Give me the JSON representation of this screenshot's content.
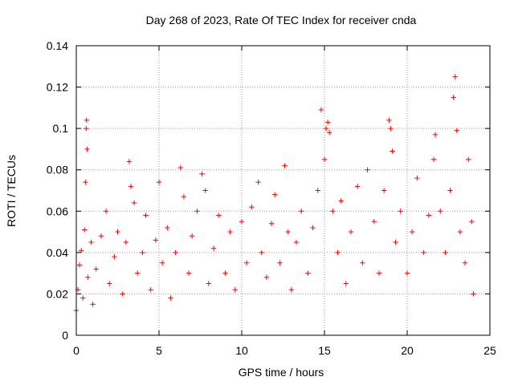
{
  "chart_data": {
    "type": "scatter",
    "title": "Day 268 of 2023, Rate Of TEC Index for receiver cnda",
    "xlabel": "GPS time / hours",
    "ylabel": "ROTI / TECUs",
    "xlim": [
      0,
      25
    ],
    "ylim": [
      0,
      0.14
    ],
    "xticks": [
      0,
      5,
      10,
      15,
      20,
      25
    ],
    "xtick_labels": [
      "0",
      "5",
      "10",
      "15",
      "20",
      "25"
    ],
    "yticks": [
      0,
      0.02,
      0.04,
      0.06,
      0.08,
      0.1,
      0.12,
      0.14
    ],
    "ytick_labels": [
      "0",
      "0.02",
      "0.04",
      "0.06",
      "0.08",
      "0.1",
      "0.12",
      "0.14"
    ],
    "grid": true,
    "marker": "plus",
    "color": "#ff0000",
    "series": [
      {
        "points": [
          [
            0.0,
            0.012
          ],
          [
            0.1,
            0.022
          ],
          [
            0.2,
            0.034
          ],
          [
            0.3,
            0.041
          ],
          [
            0.4,
            0.018
          ],
          [
            0.5,
            0.051
          ],
          [
            0.55,
            0.074
          ],
          [
            0.6,
            0.1
          ],
          [
            0.62,
            0.104
          ],
          [
            0.65,
            0.09
          ],
          [
            0.7,
            0.028
          ],
          [
            0.9,
            0.045
          ],
          [
            1.0,
            0.015
          ],
          [
            1.2,
            0.032
          ],
          [
            1.5,
            0.048
          ],
          [
            1.8,
            0.06
          ],
          [
            2.0,
            0.025
          ],
          [
            2.3,
            0.038
          ],
          [
            2.5,
            0.05
          ],
          [
            2.8,
            0.02
          ],
          [
            3.0,
            0.045
          ],
          [
            3.2,
            0.084
          ],
          [
            3.3,
            0.072
          ],
          [
            3.5,
            0.064
          ],
          [
            3.7,
            0.03
          ],
          [
            4.0,
            0.04
          ],
          [
            4.2,
            0.058
          ],
          [
            4.5,
            0.022
          ],
          [
            4.8,
            0.046
          ],
          [
            5.0,
            0.074
          ],
          [
            5.2,
            0.035
          ],
          [
            5.5,
            0.052
          ],
          [
            5.7,
            0.018
          ],
          [
            6.0,
            0.04
          ],
          [
            6.3,
            0.081
          ],
          [
            6.5,
            0.067
          ],
          [
            6.8,
            0.03
          ],
          [
            7.0,
            0.048
          ],
          [
            7.3,
            0.06
          ],
          [
            7.6,
            0.078
          ],
          [
            7.8,
            0.07
          ],
          [
            8.0,
            0.025
          ],
          [
            8.3,
            0.042
          ],
          [
            8.6,
            0.058
          ],
          [
            9.0,
            0.03
          ],
          [
            9.3,
            0.05
          ],
          [
            9.6,
            0.022
          ],
          [
            10.0,
            0.055
          ],
          [
            10.3,
            0.035
          ],
          [
            10.6,
            0.062
          ],
          [
            11.0,
            0.074
          ],
          [
            11.2,
            0.04
          ],
          [
            11.5,
            0.028
          ],
          [
            11.8,
            0.054
          ],
          [
            12.0,
            0.068
          ],
          [
            12.3,
            0.035
          ],
          [
            12.6,
            0.082
          ],
          [
            12.8,
            0.05
          ],
          [
            13.0,
            0.022
          ],
          [
            13.3,
            0.045
          ],
          [
            13.6,
            0.06
          ],
          [
            14.0,
            0.03
          ],
          [
            14.3,
            0.052
          ],
          [
            14.6,
            0.07
          ],
          [
            14.8,
            0.109
          ],
          [
            15.0,
            0.085
          ],
          [
            15.1,
            0.1
          ],
          [
            15.2,
            0.103
          ],
          [
            15.3,
            0.098
          ],
          [
            15.5,
            0.06
          ],
          [
            15.8,
            0.04
          ],
          [
            16.0,
            0.065
          ],
          [
            16.3,
            0.025
          ],
          [
            16.6,
            0.05
          ],
          [
            17.0,
            0.072
          ],
          [
            17.3,
            0.035
          ],
          [
            17.6,
            0.08
          ],
          [
            18.0,
            0.055
          ],
          [
            18.3,
            0.03
          ],
          [
            18.6,
            0.07
          ],
          [
            18.9,
            0.104
          ],
          [
            19.0,
            0.1
          ],
          [
            19.1,
            0.089
          ],
          [
            19.3,
            0.045
          ],
          [
            19.6,
            0.06
          ],
          [
            20.0,
            0.03
          ],
          [
            20.3,
            0.05
          ],
          [
            20.6,
            0.076
          ],
          [
            21.0,
            0.04
          ],
          [
            21.3,
            0.058
          ],
          [
            21.6,
            0.085
          ],
          [
            21.7,
            0.097
          ],
          [
            22.0,
            0.06
          ],
          [
            22.3,
            0.04
          ],
          [
            22.6,
            0.07
          ],
          [
            22.8,
            0.115
          ],
          [
            22.9,
            0.125
          ],
          [
            23.0,
            0.099
          ],
          [
            23.2,
            0.05
          ],
          [
            23.5,
            0.035
          ],
          [
            23.7,
            0.085
          ],
          [
            23.9,
            0.055
          ],
          [
            24.0,
            0.02
          ]
        ]
      }
    ]
  }
}
